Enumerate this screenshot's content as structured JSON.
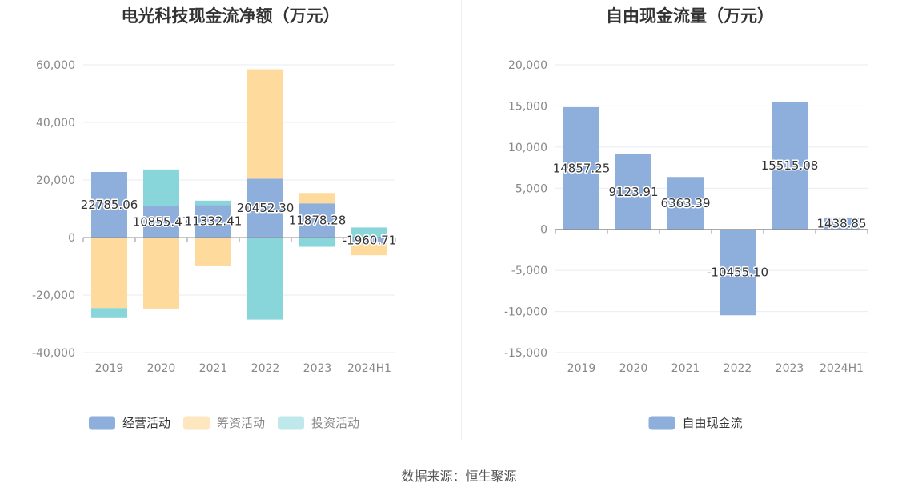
{
  "chart_data": [
    {
      "type": "bar",
      "stacked": true,
      "title": "电光科技现金流净额（万元）",
      "categories": [
        "2019",
        "2020",
        "2021",
        "2022",
        "2023",
        "2024H1"
      ],
      "ylim": [
        -40000,
        60000
      ],
      "yticks": [
        60000,
        40000,
        20000,
        0,
        -20000,
        -40000
      ],
      "ytick_labels": [
        "60,000",
        "40,000",
        "20,000",
        "0",
        "-20,000",
        "-40,000"
      ],
      "grid": true,
      "legend_position": "bottom",
      "series": [
        {
          "name": "经营活动",
          "color": "#8eaedc",
          "values": [
            22785.06,
            10855.47,
            11332.41,
            20452.3,
            11878.28,
            -1960.71
          ],
          "labels": [
            "22785.06",
            "10855.47",
            "11332.41",
            "20452.30",
            "11878.28",
            "-1960.71"
          ]
        },
        {
          "name": "筹资活动",
          "color": "#fedb9c",
          "values": [
            -24500,
            -24700,
            -10000,
            38000,
            3600,
            -4200
          ]
        },
        {
          "name": "投资活动",
          "color": "#88d6da",
          "values": [
            -3500,
            12800,
            1500,
            -28500,
            -3200,
            3500
          ]
        }
      ]
    },
    {
      "type": "bar",
      "title": "自由现金流量（万元）",
      "categories": [
        "2019",
        "2020",
        "2021",
        "2022",
        "2023",
        "2024H1"
      ],
      "ylim": [
        -15000,
        20000
      ],
      "yticks": [
        20000,
        15000,
        10000,
        5000,
        0,
        -5000,
        -10000,
        -15000
      ],
      "ytick_labels": [
        "20,000",
        "15,000",
        "10,000",
        "5,000",
        "0",
        "-5,000",
        "-10,000",
        "-15,000"
      ],
      "grid": true,
      "legend_position": "bottom",
      "series": [
        {
          "name": "自由现金流",
          "color": "#8eaedc",
          "values": [
            14857.25,
            9123.91,
            6363.39,
            -10455.1,
            15515.08,
            1438.85
          ],
          "labels": [
            "14857.25",
            "9123.91",
            "6363.39",
            "-10455.10",
            "15515.08",
            "1438.85"
          ]
        }
      ]
    }
  ],
  "footer": {
    "source": "数据来源：恒生聚源"
  }
}
